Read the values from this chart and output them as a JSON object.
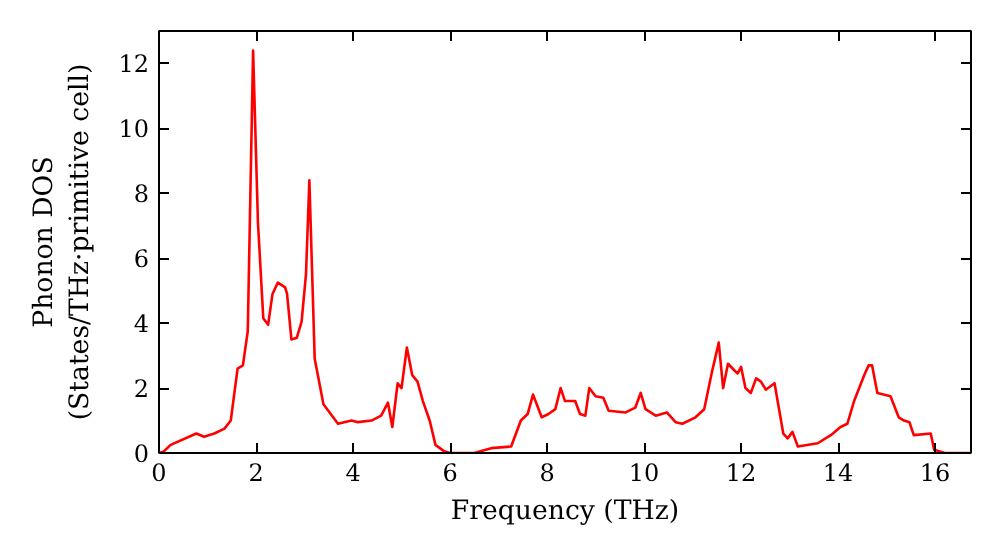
{
  "chart_data": {
    "type": "line",
    "xlabel": "Frequency (THz)",
    "ylabel": "Phonon DOS\n(States/THz·primitive cell)",
    "xlim": [
      0,
      16.74
    ],
    "ylim": [
      0,
      13
    ],
    "xticks": [
      0,
      2,
      4,
      6,
      8,
      10,
      12,
      14,
      16
    ],
    "yticks": [
      0,
      2,
      4,
      6,
      8,
      10,
      12
    ],
    "grid": false,
    "series": [
      {
        "color": "#ff0000",
        "x": [
          0,
          0.1,
          0.24,
          0.77,
          0.93,
          1.14,
          1.35,
          1.48,
          1.62,
          1.73,
          1.83,
          1.94,
          2.04,
          2.15,
          2.25,
          2.34,
          2.45,
          2.6,
          2.64,
          2.73,
          2.84,
          2.94,
          3.03,
          3.1,
          3.21,
          3.39,
          3.69,
          3.97,
          4.1,
          4.38,
          4.58,
          4.72,
          4.81,
          4.92,
          5.0,
          5.11,
          5.22,
          5.33,
          5.44,
          5.58,
          5.7,
          5.88,
          6.0,
          6.5,
          6.85,
          7.26,
          7.46,
          7.6,
          7.71,
          7.89,
          8.03,
          8.17,
          8.28,
          8.37,
          8.58,
          8.68,
          8.79,
          8.87,
          9.0,
          9.16,
          9.27,
          9.62,
          9.82,
          9.93,
          10.03,
          10.24,
          10.47,
          10.65,
          10.79,
          11.06,
          11.24,
          11.4,
          11.54,
          11.63,
          11.73,
          11.86,
          11.93,
          12.0,
          12.09,
          12.2,
          12.31,
          12.41,
          12.51,
          12.69,
          12.87,
          12.96,
          13.06,
          13.17,
          13.58,
          13.85,
          14.05,
          14.19,
          14.33,
          14.54,
          14.63,
          14.7,
          14.81,
          15.08,
          15.25,
          15.36,
          15.47,
          15.56,
          15.91,
          15.98,
          16.2,
          16.74
        ],
        "values": [
          0,
          0.05,
          0.25,
          0.6,
          0.5,
          0.6,
          0.75,
          1.0,
          2.6,
          2.7,
          3.75,
          12.4,
          7.1,
          4.15,
          3.95,
          4.9,
          5.25,
          5.1,
          4.9,
          3.5,
          3.55,
          4.05,
          5.5,
          8.4,
          2.9,
          1.5,
          0.9,
          1.0,
          0.95,
          1.0,
          1.15,
          1.55,
          0.8,
          2.15,
          2.0,
          3.25,
          2.4,
          2.2,
          1.6,
          1.0,
          0.25,
          0.05,
          0,
          0,
          0.15,
          0.2,
          1.0,
          1.2,
          1.8,
          1.1,
          1.2,
          1.35,
          2.0,
          1.6,
          1.6,
          1.2,
          1.15,
          2.0,
          1.75,
          1.7,
          1.3,
          1.25,
          1.4,
          1.85,
          1.35,
          1.15,
          1.25,
          0.95,
          0.9,
          1.1,
          1.35,
          2.5,
          3.4,
          2.0,
          2.75,
          2.55,
          2.45,
          2.65,
          2.0,
          1.85,
          2.3,
          2.2,
          1.95,
          2.15,
          0.6,
          0.45,
          0.65,
          0.2,
          0.3,
          0.55,
          0.8,
          0.9,
          1.6,
          2.4,
          2.7,
          2.7,
          1.85,
          1.75,
          1.1,
          1.0,
          0.95,
          0.55,
          0.6,
          0.1,
          0,
          0
        ]
      }
    ]
  }
}
